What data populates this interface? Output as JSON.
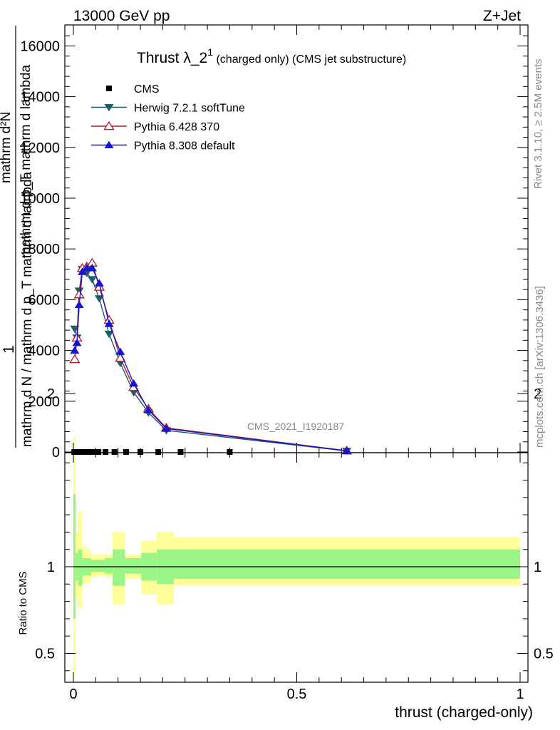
{
  "header": {
    "left": "13000 GeV pp",
    "right": "Z+Jet"
  },
  "plot_title": {
    "main": "Thrust λ_2",
    "sup": "1",
    "rest": " (charged only) (CMS jet substructure)"
  },
  "side_labels": {
    "rivet": "Rivet 3.1.10, ≥ 2.5M events",
    "mcplots": "mcplots.cern.ch [arXiv:1306.3436]"
  },
  "watermark": "CMS_2021_I1920187",
  "ylabel_top": {
    "one": "1",
    "denominator": "mathrm d N / mathrm d p_T mathrm d lambda",
    "numerator_line1": "mathrm d²N",
    "numerator_line2": "mathrm d p_T mathrm d lambda"
  },
  "ratio_ylabel": "Ratio to CMS",
  "xlabel": "thrust (charged-only)",
  "chart_data": [
    {
      "type": "line",
      "panel": "main",
      "x_range": [
        -0.02,
        1.0
      ],
      "ylim": [
        0,
        16800
      ],
      "y_ticks": [
        0,
        2000,
        4000,
        6000,
        8000,
        10000,
        12000,
        14000,
        16000
      ],
      "y_tick_labels": [
        "0",
        "2000",
        "4000",
        "6000",
        "8000",
        "10000",
        "12000",
        "14000",
        "16000"
      ],
      "legend_position": "top-left",
      "series": [
        {
          "name": "CMS",
          "marker": "square",
          "color": "#000000",
          "x": [
            0.002,
            0.007,
            0.012,
            0.018,
            0.025,
            0.033,
            0.043,
            0.056,
            0.072,
            0.092,
            0.118,
            0.15,
            0.19,
            0.24,
            0.35
          ],
          "y": [
            0,
            0,
            0,
            0,
            0,
            0,
            0,
            0,
            0,
            0,
            0,
            0,
            0,
            0,
            0
          ]
        },
        {
          "name": "Herwig 7.2.1 softTune",
          "marker": "triangle-down",
          "color": "#1e5f66",
          "x": [
            0.003,
            0.008,
            0.013,
            0.02,
            0.03,
            0.042,
            0.058,
            0.08,
            0.105,
            0.135,
            0.168,
            0.208,
            0.612
          ],
          "y": [
            4850,
            4500,
            6350,
            7200,
            7050,
            6800,
            6050,
            4650,
            3500,
            2350,
            1550,
            850,
            40
          ]
        },
        {
          "name": "Pythia 6.428 370",
          "marker": "triangle-up-open",
          "color": "#b0182a",
          "x": [
            0.003,
            0.008,
            0.013,
            0.02,
            0.03,
            0.042,
            0.058,
            0.08,
            0.105,
            0.135,
            0.168,
            0.208,
            0.612
          ],
          "y": [
            3650,
            4500,
            6200,
            7250,
            7300,
            7450,
            6500,
            5200,
            3700,
            2550,
            1700,
            950,
            50
          ]
        },
        {
          "name": "Pythia 8.308 default",
          "marker": "triangle-up",
          "color": "#1515d2",
          "x": [
            0.003,
            0.008,
            0.013,
            0.02,
            0.03,
            0.042,
            0.058,
            0.08,
            0.105,
            0.135,
            0.168,
            0.208,
            0.612
          ],
          "y": [
            4000,
            4300,
            5800,
            7100,
            7250,
            7250,
            6650,
            5050,
            3950,
            2700,
            1650,
            920,
            45
          ]
        }
      ]
    },
    {
      "type": "area",
      "panel": "ratio",
      "ylabel": "Ratio to CMS",
      "xlabel": "thrust (charged-only)",
      "x_range": [
        -0.02,
        1.0
      ],
      "ylim": [
        0.3,
        2.3
      ],
      "y_ticks": [
        0.5,
        1,
        2
      ],
      "y_tick_labels": [
        "0.5",
        "1",
        "2"
      ],
      "x_ticks": [
        0,
        0.5,
        1
      ],
      "x_tick_labels": [
        "0",
        "0.5",
        "1"
      ],
      "bands": {
        "inner_color": "#99f585",
        "outer_color": "#ffff99",
        "bins": [
          {
            "x0": 0.0,
            "x1": 0.005,
            "inner_lo": 0.7,
            "inner_hi": 1.42,
            "outer_lo": 0.36,
            "outer_hi": 1.75
          },
          {
            "x0": 0.005,
            "x1": 0.011,
            "inner_lo": 0.92,
            "inner_hi": 1.08,
            "outer_lo": 0.82,
            "outer_hi": 1.2
          },
          {
            "x0": 0.011,
            "x1": 0.02,
            "inner_lo": 0.89,
            "inner_hi": 1.1,
            "outer_lo": 0.76,
            "outer_hi": 1.32
          },
          {
            "x0": 0.02,
            "x1": 0.028,
            "inner_lo": 0.95,
            "inner_hi": 1.05,
            "outer_lo": 0.9,
            "outer_hi": 1.12
          },
          {
            "x0": 0.028,
            "x1": 0.04,
            "inner_lo": 0.95,
            "inner_hi": 1.05,
            "outer_lo": 0.91,
            "outer_hi": 1.1
          },
          {
            "x0": 0.04,
            "x1": 0.055,
            "inner_lo": 0.97,
            "inner_hi": 1.04,
            "outer_lo": 0.94,
            "outer_hi": 1.07
          },
          {
            "x0": 0.055,
            "x1": 0.07,
            "inner_lo": 0.97,
            "inner_hi": 1.04,
            "outer_lo": 0.95,
            "outer_hi": 1.07
          },
          {
            "x0": 0.07,
            "x1": 0.088,
            "inner_lo": 0.96,
            "inner_hi": 1.05,
            "outer_lo": 0.94,
            "outer_hi": 1.07
          },
          {
            "x0": 0.088,
            "x1": 0.115,
            "inner_lo": 0.89,
            "inner_hi": 1.1,
            "outer_lo": 0.78,
            "outer_hi": 1.2
          },
          {
            "x0": 0.115,
            "x1": 0.152,
            "inner_lo": 0.96,
            "inner_hi": 1.05,
            "outer_lo": 0.93,
            "outer_hi": 1.07
          },
          {
            "x0": 0.152,
            "x1": 0.187,
            "inner_lo": 0.92,
            "inner_hi": 1.08,
            "outer_lo": 0.84,
            "outer_hi": 1.15
          },
          {
            "x0": 0.187,
            "x1": 0.225,
            "inner_lo": 0.9,
            "inner_hi": 1.1,
            "outer_lo": 0.78,
            "outer_hi": 1.2
          },
          {
            "x0": 0.225,
            "x1": 1.0,
            "inner_lo": 0.93,
            "inner_hi": 1.1,
            "outer_lo": 0.89,
            "outer_hi": 1.17
          }
        ]
      }
    }
  ]
}
